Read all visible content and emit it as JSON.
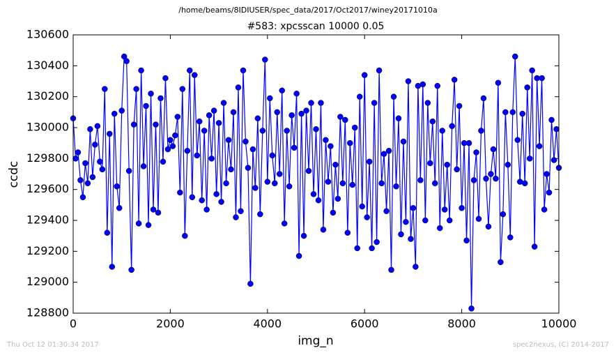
{
  "chart_data": {
    "type": "line",
    "suptitle": "/home/beams/8IDIUSER/spec_data/2017/Oct2017/winey20171010a",
    "title": "#583: xpcsscan 10000 0.05",
    "xlabel": "img_n",
    "ylabel": "ccdc",
    "footer_left": "Thu Oct 12 01:30:34 2017",
    "footer_right": "spec2nexus, (C) 2014-2017",
    "xlim": [
      0,
      10000
    ],
    "xticks": [
      0,
      2000,
      4000,
      6000,
      8000,
      10000
    ],
    "ylim": [
      128800,
      130600
    ],
    "yticks": [
      128800,
      129000,
      129200,
      129400,
      129600,
      129800,
      130000,
      130200,
      130400,
      130600
    ],
    "x": [
      0,
      50,
      100,
      150,
      200,
      250,
      300,
      350,
      400,
      450,
      500,
      550,
      600,
      650,
      700,
      750,
      800,
      850,
      900,
      950,
      1000,
      1050,
      1100,
      1150,
      1200,
      1250,
      1300,
      1350,
      1400,
      1450,
      1500,
      1550,
      1600,
      1650,
      1700,
      1750,
      1800,
      1850,
      1900,
      1950,
      2000,
      2050,
      2100,
      2150,
      2200,
      2250,
      2300,
      2350,
      2400,
      2450,
      2500,
      2550,
      2600,
      2650,
      2700,
      2750,
      2800,
      2850,
      2900,
      2950,
      3000,
      3050,
      3100,
      3150,
      3200,
      3250,
      3300,
      3350,
      3400,
      3450,
      3500,
      3550,
      3600,
      3650,
      3700,
      3750,
      3800,
      3850,
      3900,
      3950,
      4000,
      4050,
      4100,
      4150,
      4200,
      4250,
      4300,
      4350,
      4400,
      4450,
      4500,
      4550,
      4600,
      4650,
      4700,
      4750,
      4800,
      4850,
      4900,
      4950,
      5000,
      5050,
      5100,
      5150,
      5200,
      5250,
      5300,
      5350,
      5400,
      5450,
      5500,
      5550,
      5600,
      5650,
      5700,
      5750,
      5800,
      5850,
      5900,
      5950,
      6000,
      6050,
      6100,
      6150,
      6200,
      6250,
      6300,
      6350,
      6400,
      6450,
      6500,
      6550,
      6600,
      6650,
      6700,
      6750,
      6800,
      6850,
      6900,
      6950,
      7000,
      7050,
      7100,
      7150,
      7200,
      7250,
      7300,
      7350,
      7400,
      7450,
      7500,
      7550,
      7600,
      7650,
      7700,
      7750,
      7800,
      7850,
      7900,
      7950,
      8000,
      8050,
      8100,
      8150,
      8200,
      8250,
      8300,
      8350,
      8400,
      8450,
      8500,
      8550,
      8600,
      8650,
      8700,
      8750,
      8800,
      8850,
      8900,
      8950,
      9000,
      9050,
      9100,
      9150,
      9200,
      9250,
      9300,
      9350,
      9400,
      9450,
      9500,
      9550,
      9600,
      9650,
      9700,
      9750,
      9800,
      9850,
      9900,
      9950,
      10000
    ],
    "series": [
      {
        "name": "ccdc",
        "color": "#0000ff",
        "values": [
          130060,
          129800,
          129840,
          129660,
          129550,
          129770,
          129640,
          129990,
          129680,
          129890,
          130010,
          129780,
          129730,
          130250,
          129320,
          129960,
          129100,
          130090,
          129620,
          129480,
          130110,
          130460,
          130430,
          129720,
          129080,
          130020,
          130250,
          129380,
          130370,
          129750,
          130140,
          129370,
          130220,
          129470,
          130020,
          129450,
          130190,
          129780,
          130320,
          129860,
          129920,
          129880,
          129950,
          130070,
          129580,
          130250,
          129300,
          129850,
          130370,
          129550,
          130340,
          129820,
          130040,
          129530,
          129980,
          129470,
          130080,
          129800,
          130110,
          129570,
          130030,
          129520,
          130160,
          129640,
          129920,
          129730,
          130100,
          129420,
          130260,
          129460,
          130370,
          129910,
          129740,
          128990,
          129860,
          129610,
          130060,
          129440,
          129980,
          130440,
          129650,
          130190,
          129820,
          129640,
          130100,
          129700,
          130240,
          129380,
          129980,
          129620,
          130080,
          129870,
          130220,
          129170,
          130090,
          129300,
          130110,
          129720,
          130160,
          129570,
          129990,
          129530,
          130160,
          129340,
          129920,
          129650,
          129880,
          129450,
          129760,
          129540,
          130070,
          129640,
          130050,
          129320,
          129900,
          129630,
          130000,
          129220,
          130200,
          129490,
          130340,
          129420,
          129780,
          129220,
          130160,
          129260,
          130370,
          129640,
          129830,
          129460,
          129850,
          129080,
          130200,
          129620,
          130060,
          129310,
          129910,
          129390,
          130300,
          129280,
          129480,
          129100,
          130270,
          129660,
          130280,
          129400,
          130160,
          129770,
          130040,
          129640,
          130270,
          129350,
          129980,
          129470,
          129760,
          129400,
          130010,
          130310,
          129730,
          130140,
          129480,
          129900,
          129270,
          129900,
          128830,
          129660,
          129840,
          129410,
          129980,
          130190,
          129670,
          129360,
          129700,
          129860,
          129670,
          130290,
          129130,
          129440,
          130100,
          129760,
          129290,
          130100,
          130460,
          129920,
          129650,
          130090,
          129640,
          130260,
          129800,
          130370,
          129230,
          130320,
          129880,
          130320,
          129470,
          129700,
          129580,
          130050,
          129790,
          129990,
          129740
        ]
      }
    ]
  }
}
